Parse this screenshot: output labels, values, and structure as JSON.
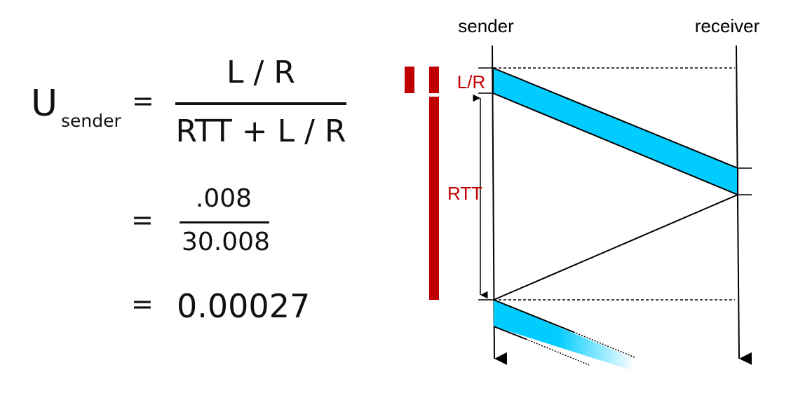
{
  "formula": {
    "u_symbol": "U",
    "u_subscript": "sender",
    "equals": "=",
    "fraction1": {
      "numerator": "L / R",
      "denominator": "RTT + L / R"
    },
    "fraction2": {
      "numerator": ".008",
      "denominator": "30.008"
    },
    "result": "0.00027"
  },
  "diagram": {
    "sender_label": "sender",
    "receiver_label": "receiver",
    "lr_label": "L/R",
    "rtt_label": "RTT",
    "colors": {
      "packet": "#00ccff",
      "bar": "#c00000",
      "label": "#c00000",
      "line": "#000000"
    }
  }
}
